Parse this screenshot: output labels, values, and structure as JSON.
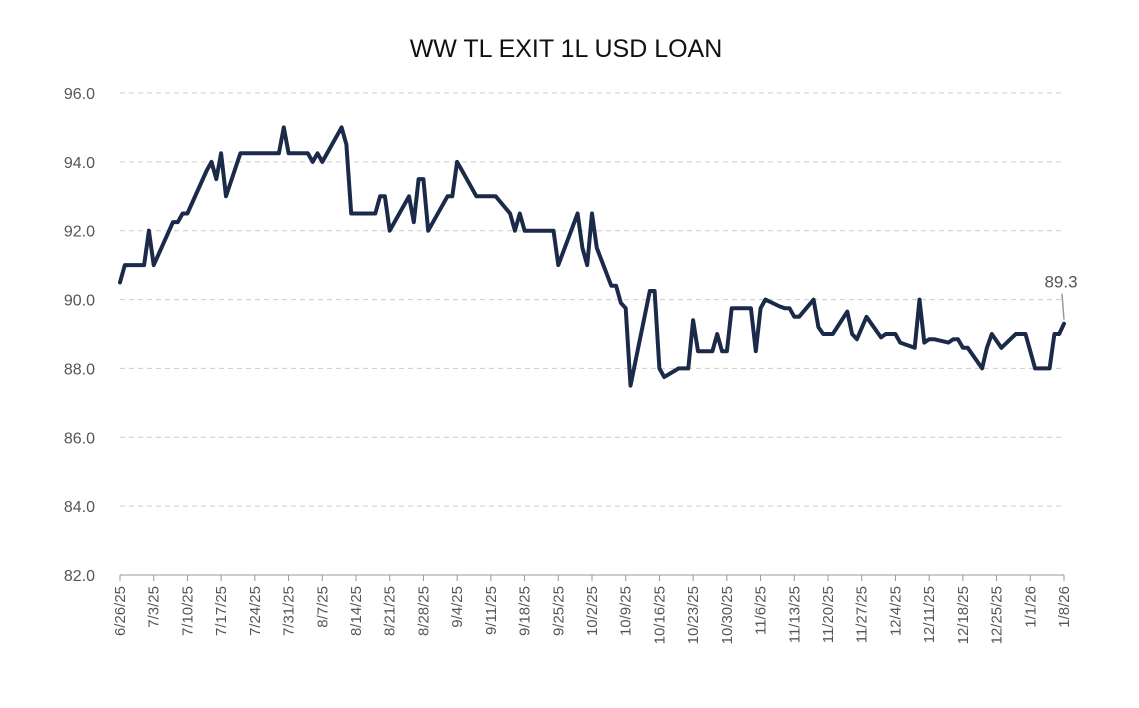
{
  "chart_data": {
    "type": "line",
    "title": "WW TL EXIT 1L USD LOAN",
    "xlabel": "",
    "ylabel": "",
    "ylim": [
      82.0,
      96.0
    ],
    "y_ticks": [
      "82.0",
      "84.0",
      "86.0",
      "88.0",
      "90.0",
      "92.0",
      "94.0",
      "96.0"
    ],
    "x_ticks": [
      "6/26/25",
      "7/3/25",
      "7/10/25",
      "7/17/25",
      "7/24/25",
      "7/31/25",
      "8/7/25",
      "8/14/25",
      "8/21/25",
      "8/28/25",
      "9/4/25",
      "9/11/25",
      "9/18/25",
      "9/25/25",
      "10/2/25",
      "10/9/25",
      "10/16/25",
      "10/23/25",
      "10/30/25",
      "11/6/25",
      "11/13/25",
      "11/20/25",
      "11/27/25",
      "12/4/25",
      "12/11/25",
      "12/18/25",
      "12/25/25",
      "1/1/26",
      "1/8/26"
    ],
    "grid": true,
    "colors": {
      "line": "#1c2a4a",
      "grid": "#cccccc",
      "text": "#555555"
    },
    "end_label": "89.3",
    "series": [
      {
        "values": [
          [
            "6/26/25",
            90.5
          ],
          [
            "6/27/25",
            91.0
          ],
          [
            "6/30/25",
            91.0
          ],
          [
            "7/1/25",
            91.0
          ],
          [
            "7/2/25",
            92.0
          ],
          [
            "7/3/25",
            91.0
          ],
          [
            "7/7/25",
            92.25
          ],
          [
            "7/8/25",
            92.25
          ],
          [
            "7/9/25",
            92.5
          ],
          [
            "7/10/25",
            92.5
          ],
          [
            "7/14/25",
            93.75
          ],
          [
            "7/15/25",
            94.0
          ],
          [
            "7/16/25",
            93.5
          ],
          [
            "7/17/25",
            94.25
          ],
          [
            "7/18/25",
            93.0
          ],
          [
            "7/21/25",
            94.25
          ],
          [
            "7/22/25",
            94.25
          ],
          [
            "7/23/25",
            94.25
          ],
          [
            "7/24/25",
            94.25
          ],
          [
            "7/25/25",
            94.25
          ],
          [
            "7/28/25",
            94.25
          ],
          [
            "7/29/25",
            94.25
          ],
          [
            "7/30/25",
            95.0
          ],
          [
            "7/31/25",
            94.25
          ],
          [
            "8/1/25",
            94.25
          ],
          [
            "8/4/25",
            94.25
          ],
          [
            "8/5/25",
            94.0
          ],
          [
            "8/6/25",
            94.25
          ],
          [
            "8/7/25",
            94.0
          ],
          [
            "8/11/25",
            95.0
          ],
          [
            "8/12/25",
            94.5
          ],
          [
            "8/13/25",
            92.5
          ],
          [
            "8/14/25",
            92.5
          ],
          [
            "8/15/25",
            92.5
          ],
          [
            "8/18/25",
            92.5
          ],
          [
            "8/19/25",
            93.0
          ],
          [
            "8/20/25",
            93.0
          ],
          [
            "8/21/25",
            92.0
          ],
          [
            "8/22/25",
            92.25
          ],
          [
            "8/25/25",
            93.0
          ],
          [
            "8/26/25",
            92.25
          ],
          [
            "8/27/25",
            93.5
          ],
          [
            "8/28/25",
            93.5
          ],
          [
            "8/29/25",
            92.0
          ],
          [
            "9/2/25",
            93.0
          ],
          [
            "9/3/25",
            93.0
          ],
          [
            "9/4/25",
            94.0
          ],
          [
            "9/5/25",
            93.75
          ],
          [
            "9/8/25",
            93.0
          ],
          [
            "9/9/25",
            93.0
          ],
          [
            "9/10/25",
            93.0
          ],
          [
            "9/11/25",
            93.0
          ],
          [
            "9/12/25",
            93.0
          ],
          [
            "9/15/25",
            92.5
          ],
          [
            "9/16/25",
            92.0
          ],
          [
            "9/17/25",
            92.5
          ],
          [
            "9/18/25",
            92.0
          ],
          [
            "9/19/25",
            92.0
          ],
          [
            "9/22/25",
            92.0
          ],
          [
            "9/23/25",
            92.0
          ],
          [
            "9/24/25",
            92.0
          ],
          [
            "9/25/25",
            91.0
          ],
          [
            "9/29/25",
            92.5
          ],
          [
            "9/30/25",
            91.5
          ],
          [
            "10/1/25",
            91.0
          ],
          [
            "10/2/25",
            92.5
          ],
          [
            "10/3/25",
            91.5
          ],
          [
            "10/6/25",
            90.4
          ],
          [
            "10/7/25",
            90.4
          ],
          [
            "10/8/25",
            89.9
          ],
          [
            "10/9/25",
            89.75
          ],
          [
            "10/10/25",
            87.5
          ],
          [
            "10/14/25",
            90.25
          ],
          [
            "10/15/25",
            90.25
          ],
          [
            "10/16/25",
            88.0
          ],
          [
            "10/17/25",
            87.75
          ],
          [
            "10/20/25",
            88.0
          ],
          [
            "10/21/25",
            88.0
          ],
          [
            "10/22/25",
            88.0
          ],
          [
            "10/23/25",
            89.4
          ],
          [
            "10/24/25",
            88.5
          ],
          [
            "10/27/25",
            88.5
          ],
          [
            "10/28/25",
            89.0
          ],
          [
            "10/29/25",
            88.5
          ],
          [
            "10/30/25",
            88.5
          ],
          [
            "10/31/25",
            89.75
          ],
          [
            "11/3/25",
            89.75
          ],
          [
            "11/4/25",
            89.75
          ],
          [
            "11/5/25",
            88.5
          ],
          [
            "11/6/25",
            89.75
          ],
          [
            "11/7/25",
            90.0
          ],
          [
            "11/10/25",
            89.8
          ],
          [
            "11/11/25",
            89.75
          ],
          [
            "11/12/25",
            89.75
          ],
          [
            "11/13/25",
            89.5
          ],
          [
            "11/14/25",
            89.5
          ],
          [
            "11/17/25",
            90.0
          ],
          [
            "11/18/25",
            89.2
          ],
          [
            "11/19/25",
            89.0
          ],
          [
            "11/20/25",
            89.0
          ],
          [
            "11/21/25",
            89.0
          ],
          [
            "11/24/25",
            89.65
          ],
          [
            "11/25/25",
            89.0
          ],
          [
            "11/26/25",
            88.85
          ],
          [
            "11/28/25",
            89.5
          ],
          [
            "12/1/25",
            88.9
          ],
          [
            "12/2/25",
            89.0
          ],
          [
            "12/3/25",
            89.0
          ],
          [
            "12/4/25",
            89.0
          ],
          [
            "12/5/25",
            88.75
          ],
          [
            "12/8/25",
            88.6
          ],
          [
            "12/9/25",
            90.0
          ],
          [
            "12/10/25",
            88.75
          ],
          [
            "12/11/25",
            88.85
          ],
          [
            "12/12/25",
            88.85
          ],
          [
            "12/15/25",
            88.75
          ],
          [
            "12/16/25",
            88.85
          ],
          [
            "12/17/25",
            88.85
          ],
          [
            "12/18/25",
            88.6
          ],
          [
            "12/19/25",
            88.6
          ],
          [
            "12/22/25",
            88.0
          ],
          [
            "12/23/25",
            88.6
          ],
          [
            "12/24/25",
            89.0
          ],
          [
            "12/26/25",
            88.6
          ],
          [
            "12/29/25",
            89.0
          ],
          [
            "12/30/25",
            89.0
          ],
          [
            "12/31/25",
            89.0
          ],
          [
            "1/2/26",
            88.0
          ],
          [
            "1/5/26",
            88.0
          ],
          [
            "1/6/26",
            89.0
          ],
          [
            "1/7/26",
            89.0
          ],
          [
            "1/8/26",
            89.3
          ]
        ]
      }
    ]
  }
}
